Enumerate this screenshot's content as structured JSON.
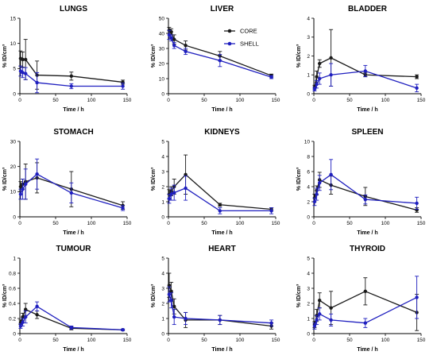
{
  "colors": {
    "core": "#1a1a1a",
    "shell": "#1f1fbf",
    "axis": "#000000"
  },
  "legend": {
    "core": "CORE",
    "shell": "SHELL"
  },
  "chart_data": [
    {
      "type": "line",
      "title": "LUNGS",
      "xlabel": "Time / h",
      "ylabel": "% ID/cm³",
      "xlim": [
        0,
        150
      ],
      "ylim": [
        0,
        15
      ],
      "xticks": [
        0,
        50,
        100,
        150
      ],
      "yticks": [
        0,
        5,
        10,
        15
      ],
      "series": [
        {
          "name": "CORE",
          "x": [
            1,
            4,
            8,
            24,
            72,
            144
          ],
          "y": [
            7,
            6.8,
            6.8,
            3.7,
            3.5,
            2.3
          ],
          "err": [
            1.5,
            1.5,
            4,
            2.8,
            0.8,
            0.4
          ]
        },
        {
          "name": "SHELL",
          "x": [
            1,
            4,
            8,
            24,
            72,
            144
          ],
          "y": [
            4.5,
            4.2,
            4.0,
            2.2,
            1.5,
            1.5
          ],
          "err": [
            1,
            1,
            1.2,
            2,
            0.5,
            0.6
          ]
        }
      ]
    },
    {
      "type": "line",
      "title": "LIVER",
      "xlabel": "Time / h",
      "ylabel": "% ID/cm³",
      "xlim": [
        0,
        150
      ],
      "ylim": [
        0,
        50
      ],
      "xticks": [
        0,
        50,
        100,
        150
      ],
      "yticks": [
        0,
        10,
        20,
        30,
        40,
        50
      ],
      "series": [
        {
          "name": "CORE",
          "x": [
            1,
            4,
            8,
            24,
            72,
            144
          ],
          "y": [
            42,
            41,
            36,
            32,
            25,
            12
          ],
          "err": [
            2,
            2,
            3,
            3,
            3,
            1
          ]
        },
        {
          "name": "SHELL",
          "x": [
            1,
            4,
            8,
            24,
            72,
            144
          ],
          "y": [
            39,
            37,
            32,
            28,
            22,
            11
          ],
          "err": [
            3,
            2,
            2,
            2,
            4,
            1
          ]
        }
      ]
    },
    {
      "type": "line",
      "title": "BLADDER",
      "xlabel": "Time / h",
      "ylabel": "% ID/cm³",
      "xlim": [
        0,
        150
      ],
      "ylim": [
        0,
        4
      ],
      "xticks": [
        0,
        50,
        100,
        150
      ],
      "yticks": [
        0,
        1,
        2,
        3,
        4
      ],
      "series": [
        {
          "name": "CORE",
          "x": [
            1,
            4,
            8,
            24,
            72,
            144
          ],
          "y": [
            0.35,
            0.9,
            1.6,
            1.9,
            1.0,
            0.9
          ],
          "err": [
            0.1,
            0.3,
            0.2,
            1.5,
            0.1,
            0.1
          ]
        },
        {
          "name": "SHELL",
          "x": [
            1,
            4,
            8,
            24,
            72,
            144
          ],
          "y": [
            0.25,
            0.5,
            0.8,
            1.0,
            1.2,
            0.3
          ],
          "err": [
            0.1,
            0.2,
            0.3,
            0.6,
            0.3,
            0.2
          ]
        }
      ]
    },
    {
      "type": "line",
      "title": "STOMACH",
      "xlabel": "Time / h",
      "ylabel": "% ID/cm³",
      "xlim": [
        0,
        150
      ],
      "ylim": [
        0,
        30
      ],
      "xticks": [
        0,
        50,
        100,
        150
      ],
      "yticks": [
        0,
        10,
        20,
        30
      ],
      "series": [
        {
          "name": "CORE",
          "x": [
            1,
            4,
            8,
            24,
            72,
            144
          ],
          "y": [
            12,
            13,
            14,
            15.5,
            11,
            4.5
          ],
          "err": [
            2,
            2,
            7,
            6,
            7,
            1.5
          ]
        },
        {
          "name": "SHELL",
          "x": [
            1,
            4,
            8,
            24,
            72,
            144
          ],
          "y": [
            9,
            11,
            13,
            17,
            9.5,
            3.5
          ],
          "err": [
            2,
            4,
            6,
            6,
            4,
            1
          ]
        }
      ]
    },
    {
      "type": "line",
      "title": "KIDNEYS",
      "xlabel": "Time / h",
      "ylabel": "% ID/cm³",
      "xlim": [
        0,
        150
      ],
      "ylim": [
        0,
        5
      ],
      "xticks": [
        0,
        50,
        100,
        150
      ],
      "yticks": [
        0,
        1,
        2,
        3,
        4,
        5
      ],
      "series": [
        {
          "name": "CORE",
          "x": [
            1,
            4,
            8,
            24,
            72,
            144
          ],
          "y": [
            1.5,
            1.7,
            2.0,
            2.8,
            0.8,
            0.5
          ],
          "err": [
            0.3,
            0.3,
            0.5,
            1.3,
            0.1,
            0.1
          ]
        },
        {
          "name": "SHELL",
          "x": [
            1,
            4,
            8,
            24,
            72,
            144
          ],
          "y": [
            1.2,
            1.5,
            1.6,
            1.9,
            0.4,
            0.4
          ],
          "err": [
            0.3,
            0.4,
            0.5,
            0.8,
            0.2,
            0.2
          ]
        }
      ]
    },
    {
      "type": "line",
      "title": "SPLEEN",
      "xlabel": "Time / h",
      "ylabel": "% ID/cm³",
      "xlim": [
        0,
        150
      ],
      "ylim": [
        0,
        10
      ],
      "xticks": [
        0,
        50,
        100,
        150
      ],
      "yticks": [
        0,
        2,
        4,
        6,
        8,
        10
      ],
      "series": [
        {
          "name": "CORE",
          "x": [
            1,
            4,
            8,
            24,
            72,
            144
          ],
          "y": [
            2.5,
            3.5,
            4.9,
            4.2,
            2.7,
            0.9
          ],
          "err": [
            0.5,
            0.6,
            1.0,
            1.2,
            1.2,
            0.3
          ]
        },
        {
          "name": "SHELL",
          "x": [
            1,
            4,
            8,
            24,
            72,
            144
          ],
          "y": [
            2.0,
            3.0,
            4.5,
            5.6,
            2.3,
            1.8
          ],
          "err": [
            0.5,
            0.8,
            1.0,
            2.0,
            0.6,
            0.8
          ]
        }
      ]
    },
    {
      "type": "line",
      "title": "TUMOUR",
      "xlabel": "Time / h",
      "ylabel": "% ID/cm³",
      "xlim": [
        0,
        150
      ],
      "ylim": [
        0,
        1.0
      ],
      "xticks": [
        0,
        50,
        100,
        150
      ],
      "yticks": [
        0,
        0.2,
        0.4,
        0.6,
        0.8,
        1.0
      ],
      "series": [
        {
          "name": "CORE",
          "x": [
            1,
            4,
            8,
            24,
            72,
            144
          ],
          "y": [
            0.15,
            0.22,
            0.32,
            0.25,
            0.07,
            0.05
          ],
          "err": [
            0.03,
            0.05,
            0.08,
            0.05,
            0.02,
            0.01
          ]
        },
        {
          "name": "SHELL",
          "x": [
            1,
            4,
            8,
            24,
            72,
            144
          ],
          "y": [
            0.1,
            0.15,
            0.22,
            0.36,
            0.08,
            0.05
          ],
          "err": [
            0.03,
            0.05,
            0.08,
            0.06,
            0.02,
            0.01
          ]
        }
      ]
    },
    {
      "type": "line",
      "title": "HEART",
      "xlabel": "Time / h",
      "ylabel": "% ID/cm³",
      "xlim": [
        0,
        150
      ],
      "ylim": [
        0,
        5
      ],
      "xticks": [
        0,
        50,
        100,
        150
      ],
      "yticks": [
        0,
        1,
        2,
        3,
        4,
        5
      ],
      "series": [
        {
          "name": "CORE",
          "x": [
            1,
            4,
            8,
            24,
            72,
            144
          ],
          "y": [
            3.2,
            2.8,
            1.8,
            0.9,
            0.9,
            0.5
          ],
          "err": [
            0.8,
            0.6,
            0.5,
            0.5,
            0.3,
            0.2
          ]
        },
        {
          "name": "SHELL",
          "x": [
            1,
            4,
            8,
            24,
            72,
            144
          ],
          "y": [
            2.6,
            2.2,
            1.1,
            1.0,
            0.9,
            0.7
          ],
          "err": [
            0.5,
            0.5,
            0.5,
            0.4,
            0.3,
            0.2
          ]
        }
      ]
    },
    {
      "type": "line",
      "title": "THYROID",
      "xlabel": "Time / h",
      "ylabel": "% ID/cm³",
      "xlim": [
        0,
        150
      ],
      "ylim": [
        0,
        5
      ],
      "xticks": [
        0,
        50,
        100,
        150
      ],
      "yticks": [
        0,
        1,
        2,
        3,
        4,
        5
      ],
      "series": [
        {
          "name": "CORE",
          "x": [
            1,
            4,
            8,
            24,
            72,
            144
          ],
          "y": [
            0.6,
            1.2,
            2.2,
            1.7,
            2.8,
            1.4
          ],
          "err": [
            0.2,
            0.4,
            0.5,
            1.1,
            0.9,
            1.2
          ]
        },
        {
          "name": "SHELL",
          "x": [
            1,
            4,
            8,
            24,
            72,
            144
          ],
          "y": [
            0.5,
            0.9,
            1.3,
            0.9,
            0.7,
            2.4
          ],
          "err": [
            0.2,
            0.3,
            0.4,
            0.4,
            0.3,
            1.4
          ]
        }
      ]
    }
  ]
}
